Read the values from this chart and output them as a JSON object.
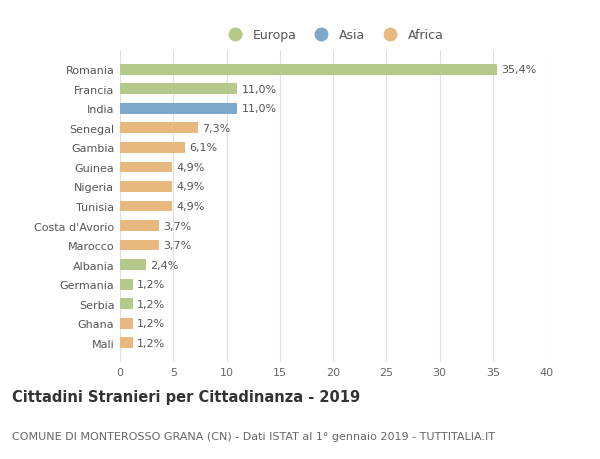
{
  "countries": [
    "Romania",
    "Francia",
    "India",
    "Senegal",
    "Gambia",
    "Guinea",
    "Nigeria",
    "Tunisia",
    "Costa d'Avorio",
    "Marocco",
    "Albania",
    "Germania",
    "Serbia",
    "Ghana",
    "Mali"
  ],
  "values": [
    35.4,
    11.0,
    11.0,
    7.3,
    6.1,
    4.9,
    4.9,
    4.9,
    3.7,
    3.7,
    2.4,
    1.2,
    1.2,
    1.2,
    1.2
  ],
  "labels": [
    "35,4%",
    "11,0%",
    "11,0%",
    "7,3%",
    "6,1%",
    "4,9%",
    "4,9%",
    "4,9%",
    "3,7%",
    "3,7%",
    "2,4%",
    "1,2%",
    "1,2%",
    "1,2%",
    "1,2%"
  ],
  "continents": [
    "Europa",
    "Europa",
    "Asia",
    "Africa",
    "Africa",
    "Africa",
    "Africa",
    "Africa",
    "Africa",
    "Africa",
    "Europa",
    "Europa",
    "Europa",
    "Africa",
    "Africa"
  ],
  "colors": {
    "Europa": "#b5c98a",
    "Asia": "#7ea8c9",
    "Africa": "#e8b97e"
  },
  "legend_labels": [
    "Europa",
    "Asia",
    "Africa"
  ],
  "title1": "Cittadini Stranieri per Cittadinanza - 2019",
  "title2": "COMUNE DI MONTEROSSO GRANA (CN) - Dati ISTAT al 1° gennaio 2019 - TUTTITALIA.IT",
  "xlim": [
    0,
    40
  ],
  "xticks": [
    0,
    5,
    10,
    15,
    20,
    25,
    30,
    35,
    40
  ],
  "bg_color": "#ffffff",
  "grid_color": "#e0e0e0",
  "bar_height": 0.55,
  "label_fontsize": 8,
  "tick_fontsize": 8,
  "title1_fontsize": 10.5,
  "title2_fontsize": 8
}
